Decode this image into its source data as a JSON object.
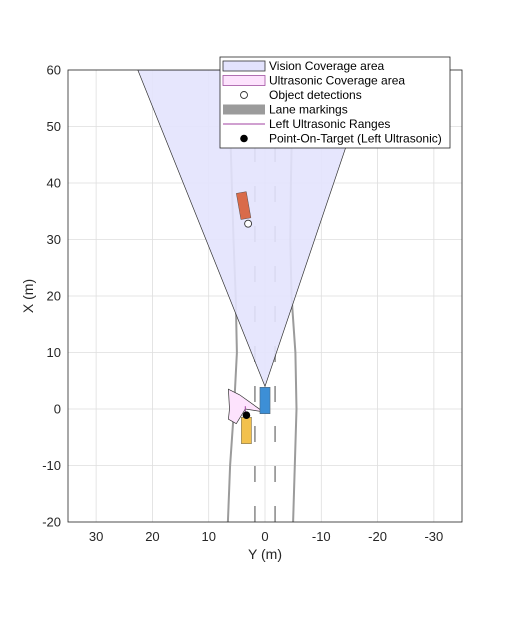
{
  "chart_data": {
    "type": "scatter",
    "xlabel": "Y (m)",
    "ylabel": "X (m)",
    "xlim": [
      35,
      -35
    ],
    "ylim": [
      -20,
      60
    ],
    "x_reversed": true,
    "x_ticks": [
      30,
      20,
      10,
      0,
      -10,
      -20,
      -30
    ],
    "y_ticks": [
      -20,
      -10,
      0,
      10,
      20,
      30,
      40,
      50,
      60
    ],
    "grid": true,
    "legend_position": "top-right",
    "legend": [
      {
        "label": "Vision Coverage area",
        "symbol": "patch"
      },
      {
        "label": "Ultrasonic Coverage area",
        "symbol": "patch"
      },
      {
        "label": "Object detections",
        "symbol": "open-circle"
      },
      {
        "label": "Lane markings",
        "symbol": "thick-line"
      },
      {
        "label": "Left Ultrasonic Ranges",
        "symbol": "line"
      },
      {
        "label": "Point-On-Target (Left Ultrasonic)",
        "symbol": "filled-circle"
      }
    ],
    "colors": {
      "vision_fill": "#e3e3fd",
      "ultrasonic_fill": "#fde3fd",
      "ultrasonic_edge": "#a050a0",
      "lane": "#9b9b9b",
      "ego": "#3d8fd6",
      "car_red": "#d96b4a",
      "car_yellow": "#f2c14e",
      "grid": "#dedede",
      "range_line": "#a040a0"
    },
    "vision_coverage": [
      [
        0,
        4
      ],
      [
        22.6,
        60
      ],
      [
        -19,
        60
      ]
    ],
    "ultrasonic_coverage": {
      "apex": [
        0.3,
        -0.5
      ],
      "points": [
        [
          4.5,
          2.5
        ],
        [
          6.5,
          3.5
        ],
        [
          6.3,
          0
        ],
        [
          6.5,
          -1.8
        ],
        [
          5.1,
          -2.6
        ],
        [
          3.5,
          0
        ]
      ]
    },
    "ego_vehicle": {
      "center": [
        0,
        1.5
      ],
      "length": 4.7,
      "width": 1.8
    },
    "vehicles": [
      {
        "name": "red-vehicle",
        "center": [
          3.8,
          36
        ],
        "length": 4.7,
        "width": 1.8,
        "heading_deg": 10
      },
      {
        "name": "yellow-vehicle",
        "center": [
          3.3,
          -3.8
        ],
        "length": 4.7,
        "width": 1.8,
        "heading_deg": 0
      }
    ],
    "object_detections": [
      {
        "y": 3,
        "x": 32.8
      }
    ],
    "left_ultrasonic_ranges": [
      [
        3.5,
        0.5
      ],
      [
        3.5,
        -1.5
      ]
    ],
    "point_on_target": [
      {
        "y": 3.3,
        "x": -1.1
      }
    ],
    "lane_lines": [
      [
        [
          6.6,
          -20
        ],
        [
          6.2,
          -10
        ],
        [
          5.5,
          0
        ],
        [
          5.0,
          10
        ],
        [
          5.2,
          20
        ],
        [
          5.6,
          30
        ],
        [
          5.9,
          40
        ],
        [
          6.2,
          50
        ],
        [
          6.4,
          60
        ]
      ],
      [
        [
          -5.0,
          -20
        ],
        [
          -5.3,
          -10
        ],
        [
          -5.6,
          0
        ],
        [
          -5.4,
          10
        ],
        [
          -4.7,
          20
        ],
        [
          -4.5,
          30
        ],
        [
          -4.6,
          40
        ],
        [
          -4.8,
          50
        ],
        [
          -5.0,
          60
        ]
      ]
    ],
    "dash_lines": [
      [
        [
          1.8,
          -20
        ],
        [
          1.8,
          60
        ]
      ],
      [
        [
          -1.8,
          -20
        ],
        [
          -1.8,
          60
        ]
      ]
    ]
  }
}
